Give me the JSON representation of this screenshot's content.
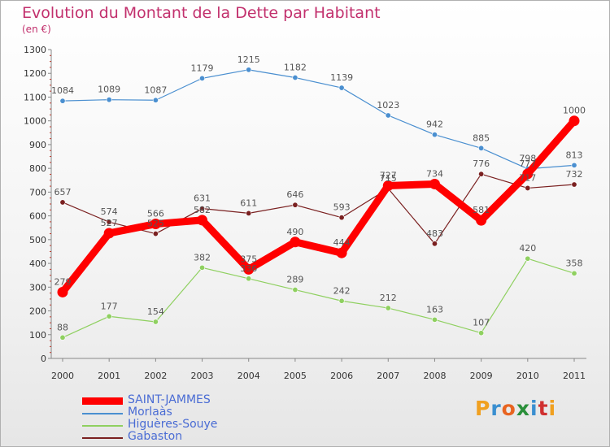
{
  "title": "Evolution du Montant de la Dette par Habitant",
  "unit": "(en €)",
  "logo_text": "Proxiti",
  "logo_colors": [
    "#f0a020",
    "#3a8fd0",
    "#e86420",
    "#2a8f3a",
    "#3a8fd0",
    "#d03030",
    "#f0a020"
  ],
  "chart_data": {
    "type": "line",
    "title": "Evolution du Montant de la Dette par Habitant",
    "subtitle": "(en €)",
    "x": [
      "2000",
      "2001",
      "2002",
      "2003",
      "2004",
      "2005",
      "2006",
      "2007",
      "2008",
      "2009",
      "2010",
      "2011"
    ],
    "ylim": [
      0,
      1300
    ],
    "yticks": [
      0,
      100,
      200,
      300,
      400,
      500,
      600,
      700,
      800,
      900,
      1000,
      1100,
      1200,
      1300
    ],
    "grid": false,
    "legend_position": "bottom-left",
    "series": [
      {
        "name": "SAINT-JAMMES",
        "color": "#ff0000",
        "values": [
          279,
          527,
          566,
          582,
          375,
          490,
          444,
          727,
          734,
          581,
          777,
          1000
        ]
      },
      {
        "name": "Morlaàs",
        "color": "#4a8fd0",
        "values": [
          1084,
          1089,
          1087,
          1179,
          1215,
          1182,
          1139,
          1023,
          942,
          885,
          798,
          813
        ]
      },
      {
        "name": "Higuères-Souye",
        "color": "#8fd060",
        "values": [
          88,
          177,
          154,
          382,
          336,
          289,
          242,
          212,
          163,
          107,
          420,
          358
        ]
      },
      {
        "name": "Gabaston",
        "color": "#7a2020",
        "values": [
          657,
          574,
          525,
          631,
          611,
          646,
          593,
          715,
          483,
          776,
          717,
          732
        ]
      }
    ]
  }
}
